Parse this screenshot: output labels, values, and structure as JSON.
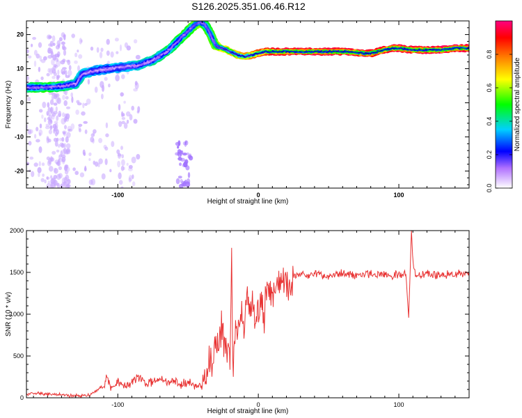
{
  "title": "S126.2025.351.06.46.R12",
  "chart_data": [
    {
      "type": "heatmap",
      "xlabel": "Height of straight line (km)",
      "ylabel": "Frequency (Hz)",
      "xlim": [
        -165,
        150
      ],
      "ylim": [
        -25,
        24
      ],
      "xticks": [
        -100,
        0,
        100
      ],
      "yticks": [
        -20,
        -10,
        0,
        10,
        20
      ],
      "colorbar": {
        "label": "Normalized spectral amplitude",
        "range": [
          0,
          1
        ],
        "ticks": [
          "0.0",
          "0.2",
          "0.4",
          "0.6",
          "0.8"
        ],
        "stops": [
          "#ffffff",
          "#b070ff",
          "#0000ff",
          "#00d0ff",
          "#00ff00",
          "#ffff00",
          "#ff8000",
          "#ff0000",
          "#ff0080"
        ]
      },
      "ridge": {
        "x": [
          -165,
          -150,
          -140,
          -130,
          -125,
          -115,
          -105,
          -95,
          -85,
          -75,
          -65,
          -55,
          -50,
          -45,
          -42,
          -38,
          -34,
          -30,
          -25,
          -20,
          -15,
          -10,
          -5,
          0,
          5,
          10,
          20,
          30,
          40,
          50,
          60,
          70,
          75,
          80,
          85,
          90,
          95,
          100,
          110,
          120,
          130,
          140,
          150
        ],
        "y": [
          4.5,
          4.5,
          4.8,
          5.5,
          8.5,
          9.5,
          10,
          10.5,
          11,
          12.5,
          15,
          19,
          21,
          23,
          23.5,
          23,
          20,
          16.5,
          16,
          15,
          14,
          13.5,
          14,
          14.5,
          15,
          15,
          15,
          15,
          15,
          15,
          15,
          14.8,
          14.5,
          14.5,
          15,
          15.5,
          16,
          16,
          15.5,
          15.5,
          15.5,
          16,
          16
        ],
        "amplitude": [
          0.45,
          0.5,
          0.45,
          0.4,
          0.4,
          0.35,
          0.35,
          0.38,
          0.4,
          0.42,
          0.45,
          0.5,
          0.5,
          0.55,
          0.6,
          0.5,
          0.5,
          0.6,
          0.62,
          0.65,
          0.7,
          0.72,
          0.75,
          0.8,
          0.85,
          0.9,
          0.92,
          0.93,
          0.93,
          0.93,
          0.92,
          0.9,
          0.9,
          0.9,
          0.9,
          0.9,
          0.9,
          0.92,
          0.93,
          0.93,
          0.94,
          0.95,
          0.95
        ]
      }
    },
    {
      "type": "line",
      "xlabel": "Height of straight line (km)",
      "ylabel": "SNR (10 * v/v)",
      "xlim": [
        -165,
        150
      ],
      "ylim": [
        0,
        2000
      ],
      "xticks": [
        -100,
        0,
        100
      ],
      "yticks": [
        0,
        500,
        1000,
        1500,
        2000
      ],
      "series": [
        {
          "color": "#e83232",
          "x": [
            -165,
            -160,
            -150,
            -140,
            -130,
            -120,
            -115,
            -110,
            -108,
            -105,
            -100,
            -95,
            -90,
            -85,
            -80,
            -75,
            -70,
            -65,
            -60,
            -55,
            -50,
            -45,
            -42,
            -40,
            -38,
            -35,
            -32,
            -30,
            -28,
            -26,
            -24,
            -22,
            -20,
            -19,
            -18,
            -17,
            -15,
            -12,
            -10,
            -8,
            -6,
            -4,
            -2,
            0,
            2,
            4,
            6,
            8,
            10,
            12,
            14,
            16,
            18,
            20,
            25,
            30,
            35,
            40,
            50,
            60,
            70,
            80,
            90,
            95,
            100,
            103,
            105,
            106,
            107,
            108,
            109,
            110,
            112,
            115,
            120,
            130,
            140,
            150
          ],
          "y": [
            40,
            50,
            45,
            35,
            25,
            30,
            90,
            140,
            300,
            120,
            200,
            130,
            180,
            260,
            160,
            200,
            240,
            180,
            210,
            160,
            200,
            120,
            150,
            100,
            220,
            400,
            500,
            620,
            700,
            800,
            650,
            550,
            450,
            1720,
            200,
            700,
            900,
            1100,
            800,
            1300,
            1000,
            1150,
            900,
            1100,
            1200,
            1000,
            1250,
            1300,
            1250,
            1300,
            1350,
            1400,
            1450,
            1400,
            1430,
            1470,
            1460,
            1480,
            1460,
            1480,
            1470,
            1490,
            1470,
            1450,
            1480,
            1460,
            1500,
            1200,
            940,
            1500,
            2000,
            1600,
            1480,
            1470,
            1480,
            1470,
            1480,
            1480
          ]
        }
      ]
    }
  ]
}
